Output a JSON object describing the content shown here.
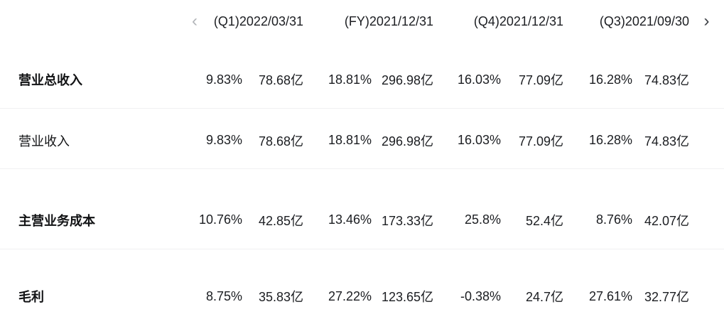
{
  "nav": {
    "prev_glyph": "‹",
    "next_glyph": "›"
  },
  "columns": [
    "(Q1)2022/03/31",
    "(FY)2021/12/31",
    "(Q4)2021/12/31",
    "(Q3)2021/09/30"
  ],
  "rows": [
    {
      "label": "营业总收入",
      "emphasis": "strong",
      "cells": [
        {
          "pct": "9.83%",
          "trend": "up",
          "value": "78.68亿"
        },
        {
          "pct": "18.81%",
          "trend": "up",
          "value": "296.98亿"
        },
        {
          "pct": "16.03%",
          "trend": "up",
          "value": "77.09亿"
        },
        {
          "pct": "16.28%",
          "trend": "up",
          "value": "74.83亿"
        }
      ]
    },
    {
      "label": "营业收入",
      "emphasis": "normal",
      "cells": [
        {
          "pct": "9.83%",
          "trend": "up",
          "value": "78.68亿"
        },
        {
          "pct": "18.81%",
          "trend": "up",
          "value": "296.98亿"
        },
        {
          "pct": "16.03%",
          "trend": "up",
          "value": "77.09亿"
        },
        {
          "pct": "16.28%",
          "trend": "up",
          "value": "74.83亿"
        }
      ]
    },
    {
      "label": "主营业务成本",
      "emphasis": "strong",
      "cells": [
        {
          "pct": "10.76%",
          "trend": "up",
          "value": "42.85亿"
        },
        {
          "pct": "13.46%",
          "trend": "up",
          "value": "173.33亿"
        },
        {
          "pct": "25.8%",
          "trend": "up",
          "value": "52.4亿"
        },
        {
          "pct": "8.76%",
          "trend": "up",
          "value": "42.07亿"
        }
      ]
    },
    {
      "label": "毛利",
      "emphasis": "strong",
      "cells": [
        {
          "pct": "8.75%",
          "trend": "up",
          "value": "35.83亿"
        },
        {
          "pct": "27.22%",
          "trend": "up",
          "value": "123.65亿"
        },
        {
          "pct": "-0.38%",
          "trend": "down",
          "value": "24.7亿"
        },
        {
          "pct": "27.61%",
          "trend": "up",
          "value": "32.77亿"
        }
      ]
    }
  ],
  "colors": {
    "positive": "#f5484d",
    "negative": "#0a9d52",
    "text": "#1b1d21",
    "divider": "#f0f0f2"
  }
}
